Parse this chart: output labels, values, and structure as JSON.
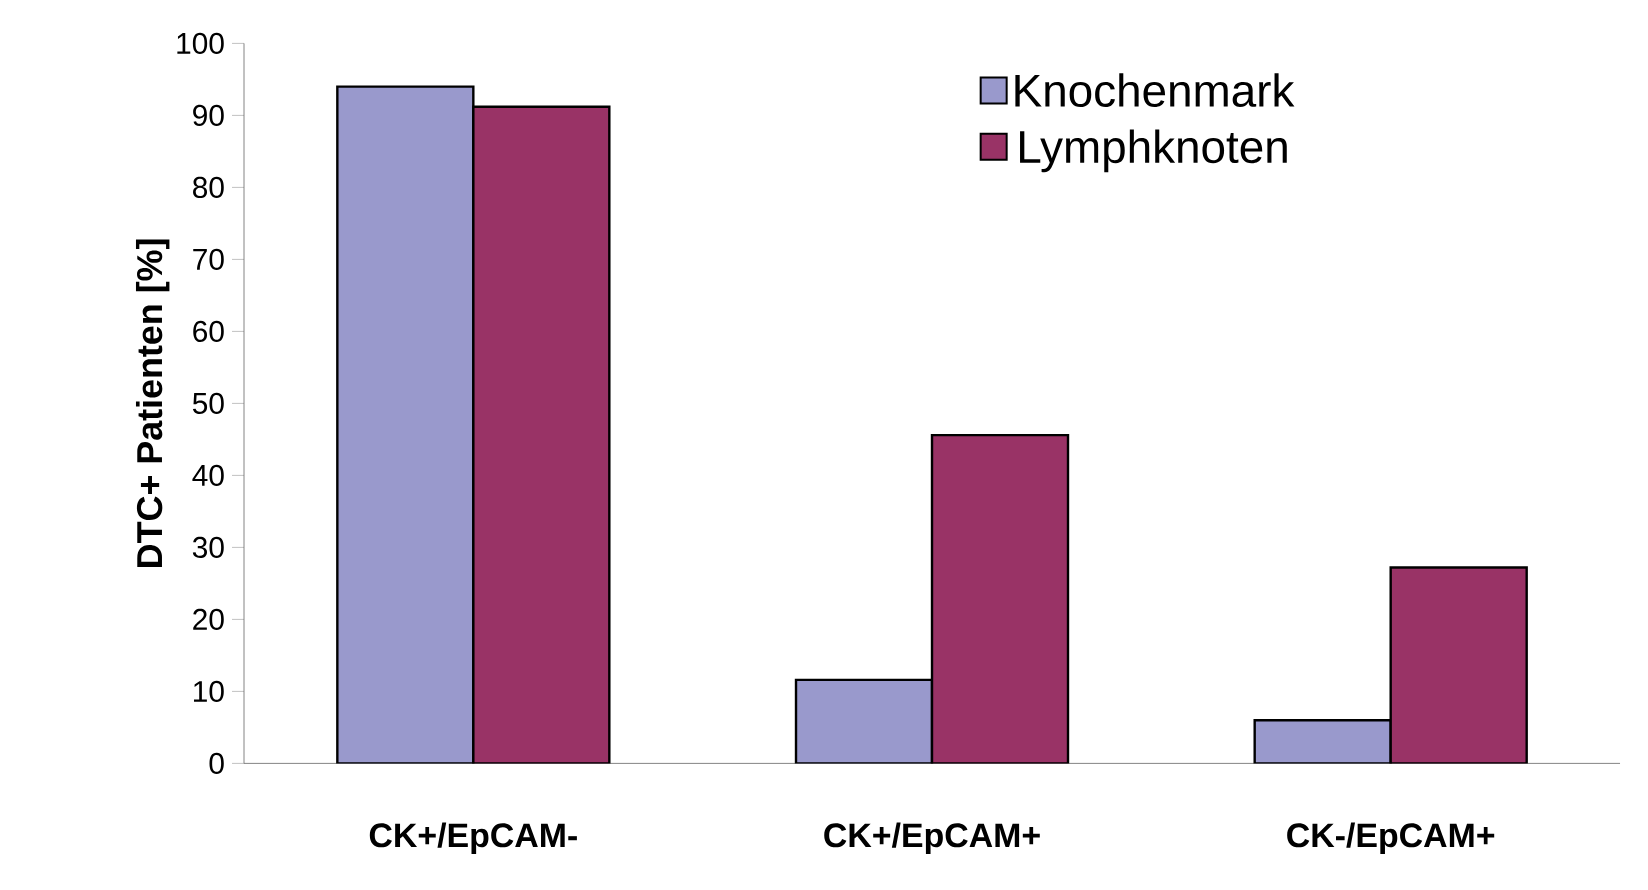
{
  "chart_data": {
    "type": "bar",
    "ylabel": "DTC+ Patienten [%]",
    "categories": [
      "CK+/EpCAM-",
      "CK+/EpCAM+",
      "CK-/EpCAM+"
    ],
    "series": [
      {
        "name": "Knochenmark",
        "color": "#9999cc",
        "values": [
          94,
          11.6,
          6.0
        ]
      },
      {
        "name": "Lymphknoten",
        "color": "#993366",
        "values": [
          91.2,
          45.6,
          27.2
        ]
      }
    ],
    "ylim": [
      0,
      100
    ],
    "yticks": [
      0,
      10,
      20,
      30,
      40,
      50,
      60,
      70,
      80,
      90,
      100
    ],
    "legend": "top right"
  }
}
